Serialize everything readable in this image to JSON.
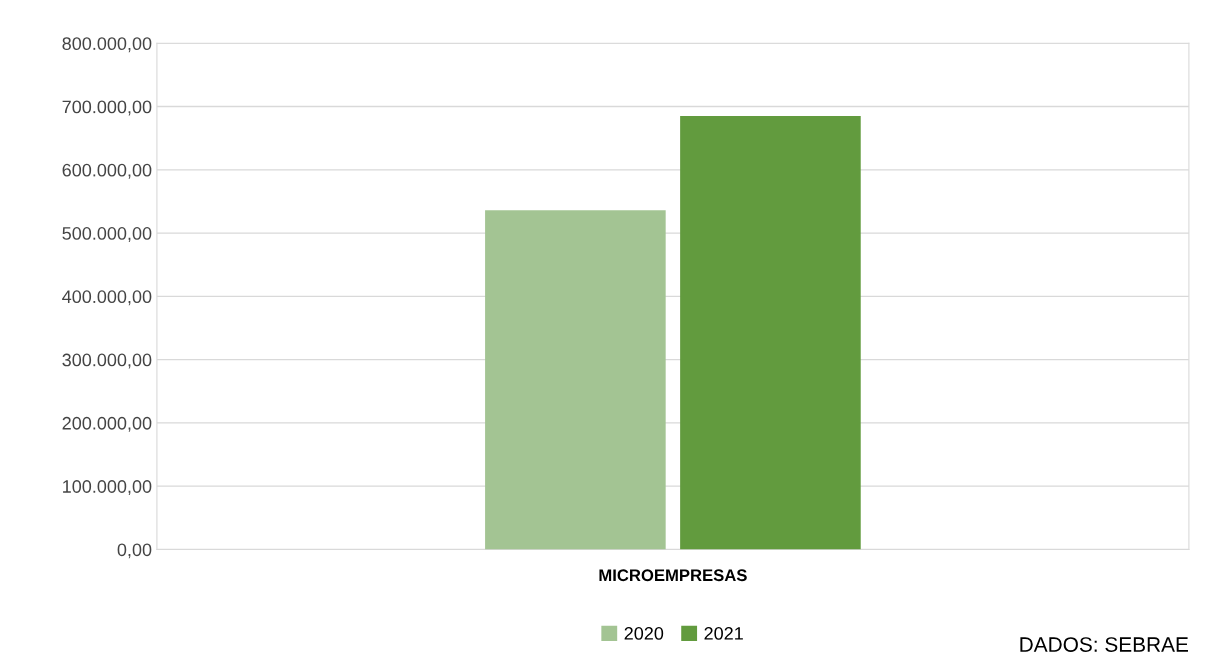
{
  "chart_data": {
    "type": "bar",
    "categories": [
      "MICROEMPRESAS"
    ],
    "series": [
      {
        "name": "2020",
        "color": "#a3c493",
        "values": [
          536000
        ]
      },
      {
        "name": "2021",
        "color": "#629b3e",
        "values": [
          685000
        ]
      }
    ],
    "ylim": [
      0,
      800000
    ],
    "yticks": [
      {
        "value": 0,
        "label": "0,00"
      },
      {
        "value": 100000,
        "label": "100.000,00"
      },
      {
        "value": 200000,
        "label": "200.000,00"
      },
      {
        "value": 300000,
        "label": "300.000,00"
      },
      {
        "value": 400000,
        "label": "400.000,00"
      },
      {
        "value": 500000,
        "label": "500.000,00"
      },
      {
        "value": 600000,
        "label": "600.000,00"
      },
      {
        "value": 700000,
        "label": "700.000,00"
      },
      {
        "value": 800000,
        "label": "800.000,00"
      }
    ],
    "grid": "y",
    "legend": "bottom",
    "annotations": [
      "DADOS: SEBRAE"
    ]
  }
}
